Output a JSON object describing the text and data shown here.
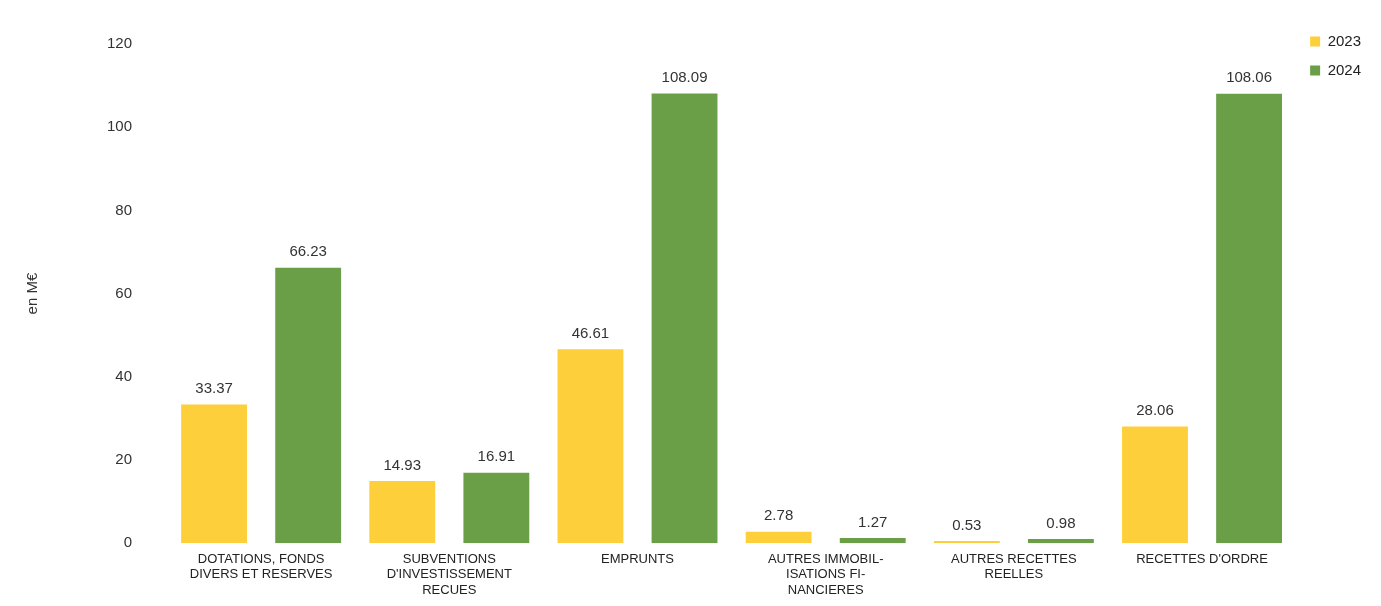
{
  "chart_data": {
    "type": "bar",
    "ylabel": "en M€",
    "categories": [
      "DOTATIONS, FONDS\nDIVERS ET RESERVES",
      "SUBVENTIONS\nD'INVESTISSEMENT\nRECUES",
      "EMPRUNTS",
      "AUTRES IMMOBIL-\nISATIONS FI-\nNANCIERES",
      "AUTRES RECETTES\nREELLES",
      "RECETTES D'ORDRE"
    ],
    "series": [
      {
        "name": "2023",
        "color": "#fdd03b",
        "values": [
          33.37,
          14.93,
          46.61,
          2.78,
          0.53,
          28.06
        ]
      },
      {
        "name": "2024",
        "color": "#6a9f48",
        "values": [
          66.23,
          16.91,
          108.09,
          1.27,
          0.98,
          108.06
        ]
      }
    ],
    "ylim": [
      0,
      120
    ],
    "yticks": [
      0,
      20,
      40,
      60,
      80,
      100,
      120
    ],
    "grid": false,
    "legend": "top right",
    "data_labels": true
  }
}
